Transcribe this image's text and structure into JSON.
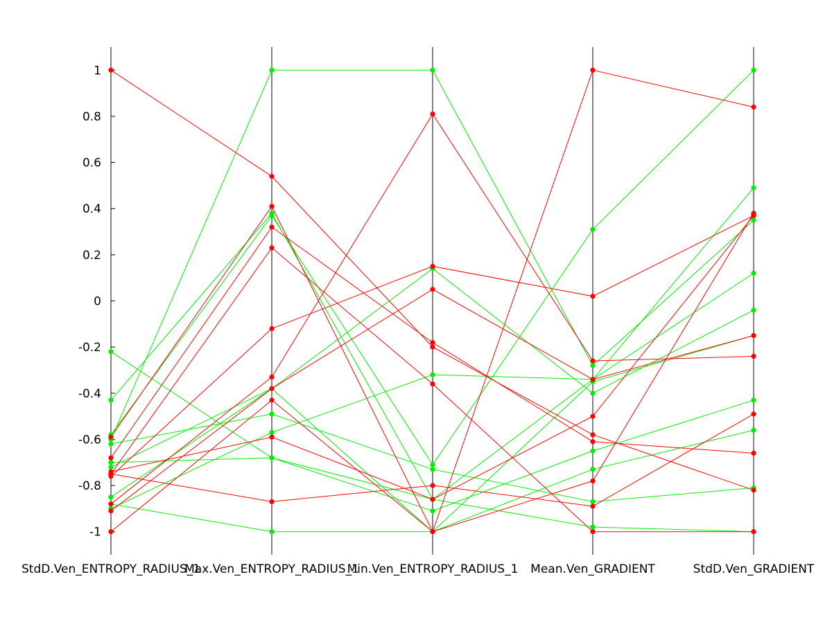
{
  "chart_data": {
    "type": "parallel-coordinates",
    "title": "",
    "axes": [
      "StdD.Ven_ENTROPY_RADIUS_1",
      "Max.Ven_ENTROPY_RADIUS_1",
      "Min.Ven_ENTROPY_RADIUS_1",
      "Mean.Ven_GRADIENT",
      "StdD.Ven_GRADIENT"
    ],
    "ylim": [
      -1.1,
      1.1
    ],
    "yticks": [
      -1,
      -0.8,
      -0.6,
      -0.4,
      -0.2,
      0,
      0.2,
      0.4,
      0.6,
      0.8,
      1
    ],
    "ytick_labels": [
      "-1",
      "-0.8",
      "-0.6",
      "-0.4",
      "-0.2",
      "0",
      "0.2",
      "0.4",
      "0.6",
      "0.8",
      "1"
    ],
    "colors": {
      "red": "#ff0000",
      "green": "#00ee00",
      "axis": "#000000"
    },
    "series": [
      {
        "color": "green",
        "values": [
          -0.72,
          -0.38,
          -1.0,
          -0.35,
          -0.15
        ]
      },
      {
        "color": "green",
        "values": [
          -0.6,
          1.0,
          1.0,
          -0.28,
          0.35
        ]
      },
      {
        "color": "green",
        "values": [
          -0.43,
          0.38,
          -0.86,
          -0.34,
          0.49
        ]
      },
      {
        "color": "green",
        "values": [
          -0.22,
          -0.68,
          -0.86,
          -0.98,
          -1.0
        ]
      },
      {
        "color": "green",
        "values": [
          -0.58,
          0.37,
          -0.71,
          0.31,
          1.0
        ]
      },
      {
        "color": "green",
        "values": [
          -0.9,
          -0.57,
          -0.32,
          -0.34,
          0.12
        ]
      },
      {
        "color": "green",
        "values": [
          -0.62,
          -0.49,
          -0.73,
          -0.87,
          -0.81
        ]
      },
      {
        "color": "green",
        "values": [
          -0.85,
          -0.38,
          0.14,
          -0.4,
          -0.04
        ]
      },
      {
        "color": "green",
        "values": [
          -0.7,
          -0.68,
          -0.91,
          -0.65,
          -0.43
        ]
      },
      {
        "color": "green",
        "values": [
          -0.88,
          -1.0,
          -1.0,
          -0.73,
          -0.56
        ]
      },
      {
        "color": "red",
        "values": [
          1.0,
          0.54,
          -0.2,
          -0.58,
          -0.82
        ]
      },
      {
        "color": "red",
        "values": [
          -0.59,
          0.41,
          -1.0,
          -0.78,
          0.38
        ]
      },
      {
        "color": "red",
        "values": [
          -0.68,
          0.32,
          -0.18,
          -0.61,
          -0.66
        ]
      },
      {
        "color": "red",
        "values": [
          -0.75,
          0.23,
          -0.36,
          -1.0,
          -1.0
        ]
      },
      {
        "color": "red",
        "values": [
          -0.76,
          -0.12,
          0.15,
          0.02,
          0.37
        ]
      },
      {
        "color": "red",
        "values": [
          -0.88,
          -0.33,
          0.81,
          -0.26,
          -0.24
        ]
      },
      {
        "color": "red",
        "values": [
          -1.0,
          -0.43,
          -1.0,
          1.0,
          0.84
        ]
      },
      {
        "color": "red",
        "values": [
          -0.91,
          -0.38,
          0.05,
          -0.34,
          -0.15
        ]
      },
      {
        "color": "red",
        "values": [
          -0.74,
          -0.59,
          -0.86,
          -0.5,
          0.37
        ]
      },
      {
        "color": "red",
        "values": [
          -0.75,
          -0.87,
          -0.8,
          -0.89,
          -0.49
        ]
      }
    ]
  }
}
